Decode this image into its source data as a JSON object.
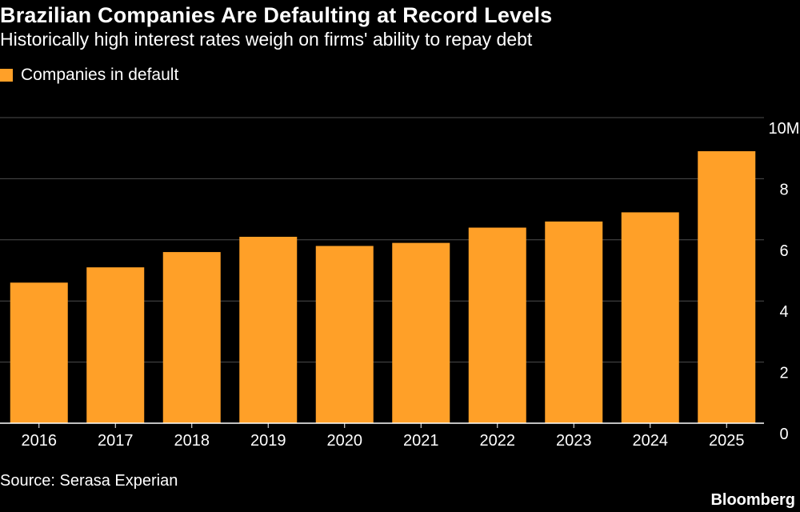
{
  "colors": {
    "bar": "#FFA028",
    "grid": "#4d4d4d",
    "axis": "#ffffff",
    "background": "#000000"
  },
  "chart_data": {
    "type": "bar",
    "title": "Brazilian Companies Are Defaulting at Record Levels",
    "subtitle": "Historically high interest rates weigh on firms' ability to repay debt",
    "legend": "Companies in default",
    "categories": [
      "2016",
      "2017",
      "2018",
      "2019",
      "2020",
      "2021",
      "2022",
      "2023",
      "2024",
      "2025"
    ],
    "values": [
      4.6,
      5.1,
      5.6,
      6.1,
      5.8,
      5.9,
      6.4,
      6.6,
      6.9,
      8.9
    ],
    "units": "millions",
    "ylim": [
      0,
      10
    ],
    "yticks": [
      "0",
      "2",
      "4",
      "6",
      "8",
      "10M"
    ],
    "ytick_values": [
      0,
      2,
      4,
      6,
      8,
      10
    ],
    "grid": true,
    "source": "Source: Serasa Experian",
    "brand": "Bloomberg"
  }
}
